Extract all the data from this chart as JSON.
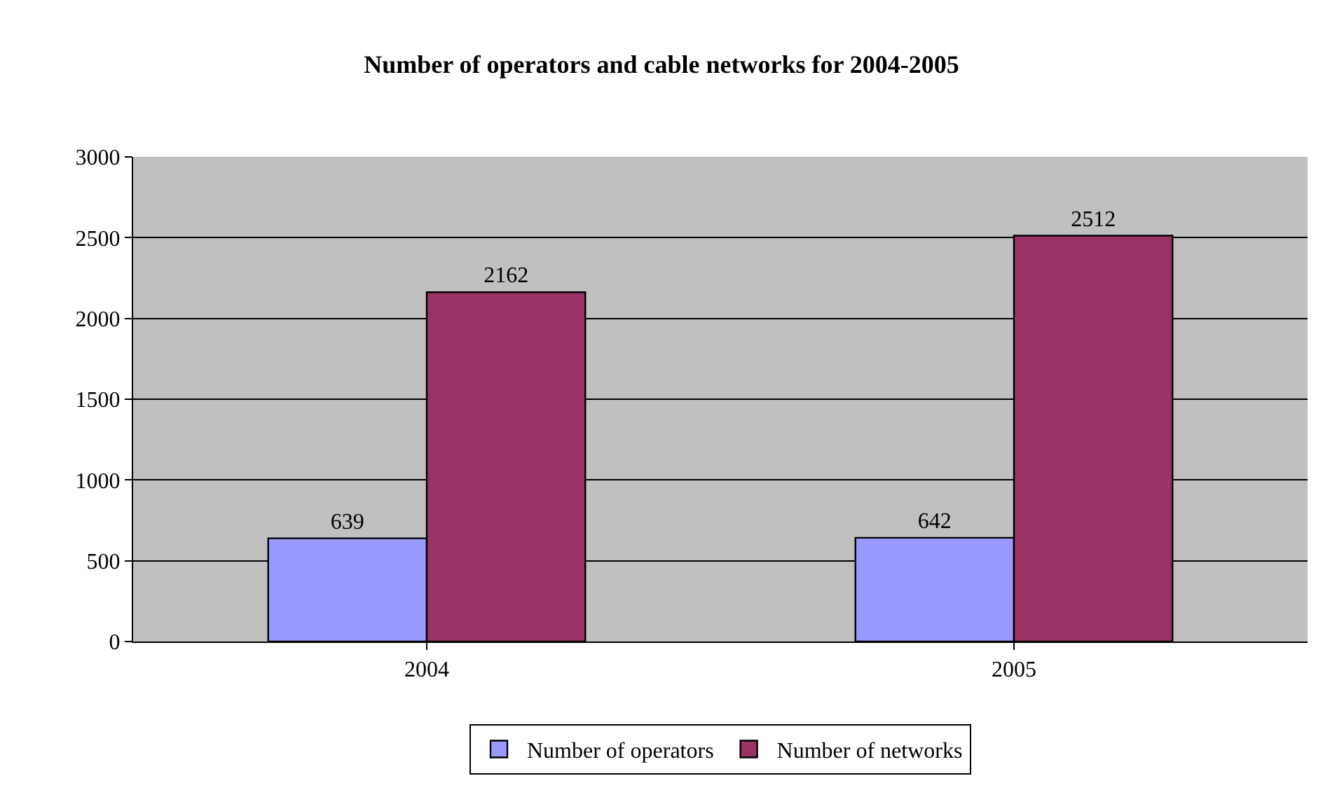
{
  "chart_data": {
    "type": "bar",
    "title": "Number of operators and cable networks for 2004-2005",
    "categories": [
      "2004",
      "2005"
    ],
    "series": [
      {
        "name": "Number of operators",
        "color": "#9999ff",
        "values": [
          639,
          642
        ]
      },
      {
        "name": "Number of networks",
        "color": "#993366",
        "values": [
          2162,
          2512
        ]
      }
    ],
    "ylim": [
      0,
      3000
    ],
    "yticks": [
      0,
      500,
      1000,
      1500,
      2000,
      2500,
      3000
    ],
    "grid": "y",
    "legend": "bottom",
    "data_labels": true
  }
}
